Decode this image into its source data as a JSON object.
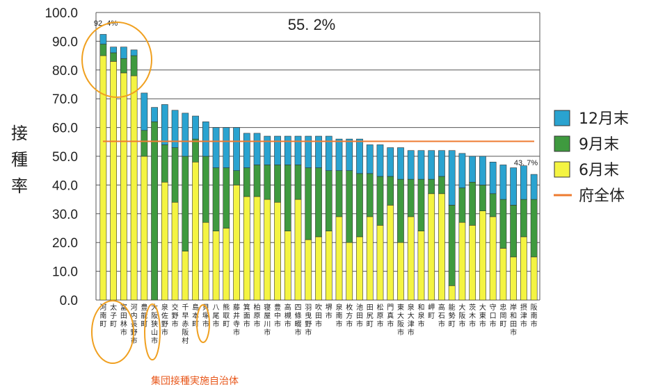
{
  "colors": {
    "dec": "#2aa3d0",
    "sep": "#3f9a3f",
    "jun": "#f4f442",
    "prefecture": "#ee7b30",
    "highlight": "#f0a020",
    "footnote": "#e8581c"
  },
  "chart_data": {
    "type": "bar",
    "stacked": true,
    "ylabel": "接種率",
    "ylim": [
      0,
      100
    ],
    "yticks": [
      "0.0",
      "10.0",
      "20.0",
      "30.0",
      "40.0",
      "50.0",
      "60.0",
      "70.0",
      "80.0",
      "90.0",
      "100.0"
    ],
    "categories": [
      "河南町",
      "太子町",
      "富田林市",
      "河内長野市",
      "豊能町",
      "大阪狭山市",
      "泉佐野市",
      "交野市",
      "千早赤阪村",
      "島本町",
      "貝塚市",
      "八尾市",
      "熊取町",
      "藤井寺市",
      "箕面市",
      "柏原市",
      "寝屋川市",
      "豊中市",
      "高槻市",
      "四條畷市",
      "羽曳野市",
      "吹田市",
      "堺市",
      "泉南市",
      "枚方市",
      "池田市",
      "田尻町",
      "松原市",
      "門真市",
      "東大阪市",
      "泉大津市",
      "和泉市",
      "岬町",
      "高石市",
      "能勢町",
      "大阪市",
      "茨木市",
      "大東市",
      "守口市",
      "忠岡町",
      "岸和田市",
      "摂津市",
      "阪南市"
    ],
    "series": [
      {
        "name": "6月末",
        "values": [
          85,
          83,
          79,
          78,
          50,
          0,
          41,
          34,
          17,
          48,
          27,
          24,
          25,
          40,
          36,
          36,
          35,
          34,
          24,
          35,
          21,
          22,
          24,
          29,
          20,
          22,
          29,
          26,
          33,
          20,
          29,
          24,
          37,
          37,
          5,
          27,
          26,
          31,
          29,
          18,
          15,
          22,
          15
        ]
      },
      {
        "name": "9月末",
        "values": [
          4,
          3,
          5,
          7,
          9,
          62,
          13,
          19,
          33,
          8,
          23,
          22,
          21,
          5,
          10,
          11,
          12,
          13,
          23,
          12,
          25,
          24,
          21,
          16,
          25,
          22,
          15,
          17,
          10,
          22,
          13,
          18,
          5,
          6,
          28,
          12,
          15,
          9,
          8,
          17,
          18,
          13,
          20
        ]
      },
      {
        "name": "12月末",
        "values": [
          3.4,
          2,
          4,
          2,
          13,
          5,
          14,
          13,
          15,
          8,
          12,
          14,
          14,
          15,
          12,
          11,
          10,
          10,
          10,
          10,
          11,
          11,
          12,
          11,
          11,
          12,
          10,
          11,
          10,
          11,
          10,
          10,
          10,
          9,
          19,
          12,
          9,
          10,
          11,
          12,
          13,
          11.7,
          8.7
        ]
      }
    ],
    "totals": [
      92.4,
      88,
      88,
      87,
      72,
      67,
      68,
      66,
      65,
      64,
      62,
      60,
      60,
      60,
      58,
      58,
      57,
      57,
      57,
      57,
      57,
      57,
      57,
      56,
      56,
      56,
      54,
      54,
      53,
      53,
      52,
      52,
      52,
      52,
      52,
      51,
      50,
      50,
      48,
      47,
      46,
      46.7,
      43.7
    ],
    "reference_line": {
      "name": "府全体",
      "value": 55.2
    },
    "annotations": {
      "center": "55. 2%",
      "max": "92. 4%",
      "min": "43. 7%"
    },
    "highlighted_categories": [
      "河南町",
      "太子町",
      "富田林市",
      "河内長野市",
      "大阪狭山市",
      "貝塚市"
    ],
    "legend": [
      "12月末",
      "9月末",
      "6月末",
      "府全体"
    ],
    "legend_position": "right",
    "grid": true,
    "footnote": "集団接種実施自治体"
  }
}
